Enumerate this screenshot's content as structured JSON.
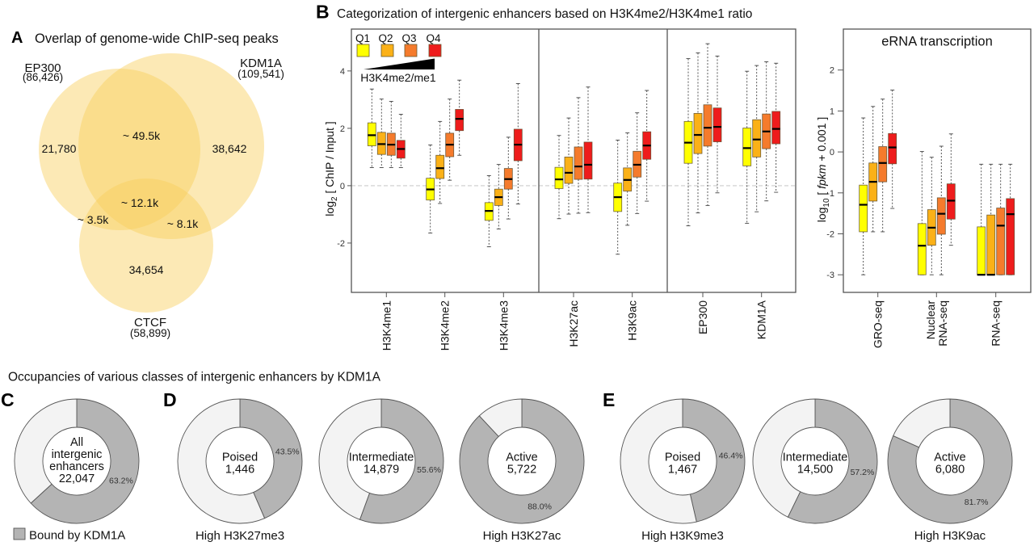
{
  "panel_a": {
    "letter": "A",
    "title": "Overlap of genome-wide ChIP-seq peaks"
  },
  "panel_b": {
    "letter": "B",
    "title": "Categorization of intergenic enhancers based on H3K4me2/H3K4me1 ratio"
  },
  "bottom_section": {
    "title": "Occupancies of various classes of intergenic enhancers by KDM1A",
    "letters": [
      "C",
      "D",
      "E"
    ]
  },
  "chart_data": [
    {
      "type": "venn",
      "title": "Overlap of genome-wide ChIP-seq peaks",
      "fill_color": "#f8cf5a",
      "sets": [
        {
          "name": "EP300",
          "total": 86426,
          "total_label": "(86,426)"
        },
        {
          "name": "KDM1A",
          "total": 109541,
          "total_label": "(109,541)"
        },
        {
          "name": "CTCF",
          "total": 58899,
          "total_label": "(58,899)"
        }
      ],
      "regions": [
        {
          "sets": [
            "EP300"
          ],
          "label": "21,780"
        },
        {
          "sets": [
            "EP300",
            "KDM1A"
          ],
          "label": "~ 49.5k"
        },
        {
          "sets": [
            "KDM1A"
          ],
          "label": "38,642"
        },
        {
          "sets": [
            "EP300",
            "KDM1A",
            "CTCF"
          ],
          "label": "~ 12.1k"
        },
        {
          "sets": [
            "EP300",
            "CTCF"
          ],
          "label": "~ 3.5k"
        },
        {
          "sets": [
            "KDM1A",
            "CTCF"
          ],
          "label": "~ 8.1k"
        },
        {
          "sets": [
            "CTCF"
          ],
          "label": "34,654"
        }
      ]
    },
    {
      "type": "box",
      "title": "Categorization of intergenic enhancers based on H3K4me2/H3K4me1 ratio",
      "ylabel": "log2 [ ChIP / Input ]",
      "ylabel_parts": {
        "base": "log",
        "sub": "2",
        "rest": " [ ChIP / Input ]"
      },
      "ylim": [
        -3.72,
        5.46
      ],
      "yticks": [
        4,
        2,
        0,
        -2
      ],
      "reference_line": 0,
      "grid": false,
      "legend": {
        "placement": "top-left",
        "labels": [
          "Q1",
          "Q2",
          "Q3",
          "Q4"
        ],
        "gradient_label": "H3K4me2/me1"
      },
      "series": [
        {
          "name": "Q1",
          "color": "#ffff00"
        },
        {
          "name": "Q2",
          "color": "#fbb117"
        },
        {
          "name": "Q3",
          "color": "#f57b2c"
        },
        {
          "name": "Q4",
          "color": "#ee1c1c"
        }
      ],
      "sections": [
        [
          "H3K4me1",
          "H3K4me2",
          "H3K4me3"
        ],
        [
          "H3K27ac",
          "H3K9ac"
        ],
        [
          "EP300",
          "KDM1A"
        ]
      ],
      "categories": [
        "H3K4me1",
        "H3K4me2",
        "H3K4me3",
        "H3K27ac",
        "H3K9ac",
        "EP300",
        "KDM1A"
      ],
      "stats_order": [
        "whisker_low",
        "q1",
        "median",
        "q3",
        "whisker_high"
      ],
      "values": [
        [
          [
            0.63,
            1.39,
            1.76,
            2.19,
            3.37
          ],
          [
            0.63,
            1.09,
            1.45,
            1.86,
            3.02
          ],
          [
            0.63,
            1.06,
            1.43,
            1.83,
            2.94
          ],
          [
            0.63,
            0.96,
            1.28,
            1.58,
            2.49
          ]
        ],
        [
          [
            -1.65,
            -0.5,
            -0.13,
            0.26,
            1.42
          ],
          [
            -0.62,
            0.25,
            0.61,
            1.06,
            2.24
          ],
          [
            0.19,
            1.01,
            1.43,
            1.83,
            3.02
          ],
          [
            1.06,
            1.92,
            2.33,
            2.66,
            3.68
          ]
        ],
        [
          [
            -2.13,
            -1.21,
            -0.88,
            -0.59,
            0.35
          ],
          [
            -1.51,
            -0.69,
            -0.4,
            -0.12,
            0.74
          ],
          [
            -1.16,
            -0.12,
            0.23,
            0.6,
            1.69
          ],
          [
            -0.64,
            0.87,
            1.43,
            1.97,
            3.56
          ]
        ],
        [
          [
            -1.15,
            -0.1,
            0.22,
            0.64,
            1.75
          ],
          [
            -0.99,
            0.08,
            0.45,
            1.0,
            2.36
          ],
          [
            -0.96,
            0.22,
            0.67,
            1.35,
            3.07
          ],
          [
            -0.94,
            0.23,
            0.73,
            1.52,
            3.44
          ]
        ],
        [
          [
            -2.39,
            -0.9,
            -0.4,
            0.09,
            1.59
          ],
          [
            -1.38,
            -0.19,
            0.2,
            0.62,
            1.84
          ],
          [
            -0.97,
            0.3,
            0.73,
            1.2,
            2.54
          ],
          [
            -0.54,
            0.92,
            1.4,
            1.88,
            3.32
          ]
        ],
        [
          [
            -1.4,
            0.78,
            1.5,
            2.24,
            4.43
          ],
          [
            -0.95,
            1.12,
            1.77,
            2.52,
            4.63
          ],
          [
            -0.69,
            1.38,
            2.02,
            2.82,
            4.95
          ],
          [
            -0.25,
            1.53,
            2.05,
            2.71,
            4.52
          ]
        ],
        [
          [
            -1.31,
            0.69,
            1.31,
            2.01,
            3.99
          ],
          [
            -0.91,
            1.0,
            1.61,
            2.3,
            4.19
          ],
          [
            -0.53,
            1.29,
            1.89,
            2.5,
            4.32
          ],
          [
            -0.23,
            1.46,
            1.98,
            2.59,
            4.27
          ]
        ]
      ]
    },
    {
      "type": "box",
      "title": "eRNA transcription",
      "ylabel": "log10 [ fpkm + 0.001 ]",
      "ylabel_parts": {
        "base": "log",
        "sub": "10",
        "pre": " [ ",
        "italic": "fpkm",
        "post": " + 0.001 ]"
      },
      "ylim": [
        -3.43,
        3.0
      ],
      "yticks": [
        2,
        1,
        0,
        -1,
        -2,
        -3
      ],
      "grid": false,
      "series": [
        {
          "name": "Q1",
          "color": "#ffff00"
        },
        {
          "name": "Q2",
          "color": "#fbb117"
        },
        {
          "name": "Q3",
          "color": "#f57b2c"
        },
        {
          "name": "Q4",
          "color": "#ee1c1c"
        }
      ],
      "categories": [
        "GRO-seq",
        "Nuclear RNA-seq",
        "RNA-seq"
      ],
      "category_lines": [
        [
          "GRO-seq"
        ],
        [
          "Nuclear",
          "RNA-seq"
        ],
        [
          "RNA-seq"
        ]
      ],
      "stats_order": [
        "whisker_low",
        "q1",
        "median",
        "q3",
        "whisker_high"
      ],
      "values": [
        [
          [
            -3.0,
            -1.95,
            -1.29,
            -0.81,
            0.83
          ],
          [
            -1.95,
            -1.2,
            -0.73,
            -0.27,
            1.11
          ],
          [
            -1.95,
            -0.73,
            -0.27,
            0.13,
            1.29
          ],
          [
            -1.38,
            -0.29,
            0.11,
            0.45,
            1.51
          ]
        ],
        [
          [
            -3.0,
            -3.0,
            -2.29,
            -1.75,
            0.01
          ],
          [
            -3.0,
            -2.28,
            -1.85,
            -1.41,
            -0.13
          ],
          [
            -3.0,
            -2.01,
            -1.51,
            -1.12,
            0.14
          ],
          [
            -2.28,
            -1.64,
            -1.19,
            -0.78,
            0.44
          ]
        ],
        [
          [
            -3.0,
            -3.0,
            -3.0,
            -1.83,
            -0.3
          ],
          [
            -3.0,
            -3.0,
            -3.0,
            -1.54,
            -0.3
          ],
          [
            -3.0,
            -3.0,
            -1.8,
            -1.37,
            -0.3
          ],
          [
            -3.0,
            -3.0,
            -1.52,
            -1.14,
            -0.3
          ]
        ]
      ]
    },
    {
      "type": "pie",
      "subtype": "donut",
      "title": "Occupancies of various classes of intergenic enhancers by KDM1A",
      "legend": {
        "label": "Bound by KDM1A",
        "placement": "bottom-left"
      },
      "colors": {
        "bound": "#b4b4b4",
        "unbound": "#f3f3f3"
      },
      "charts": [
        {
          "panel": "C",
          "center_lines": [
            "All",
            "intergenic",
            "enhancers",
            "22,047"
          ],
          "count": 22047,
          "bound_pct": 63.2,
          "pct_label": "63.2%",
          "caption": ""
        },
        {
          "panel": "D",
          "center_lines": [
            "Poised",
            "1,446"
          ],
          "count": 1446,
          "bound_pct": 43.5,
          "pct_label": "43.5%",
          "caption": "High H3K27me3"
        },
        {
          "panel": "D",
          "center_lines": [
            "Intermediate",
            "14,879"
          ],
          "count": 14879,
          "bound_pct": 55.6,
          "pct_label": "55.6%",
          "caption": ""
        },
        {
          "panel": "D",
          "center_lines": [
            "Active",
            "5,722"
          ],
          "count": 5722,
          "bound_pct": 88.0,
          "pct_label": "88.0%",
          "caption": "High H3K27ac"
        },
        {
          "panel": "E",
          "center_lines": [
            "Poised",
            "1,467"
          ],
          "count": 1467,
          "bound_pct": 46.4,
          "pct_label": "46.4%",
          "caption": "High H3K9me3"
        },
        {
          "panel": "E",
          "center_lines": [
            "Intermediate",
            "14,500"
          ],
          "count": 14500,
          "bound_pct": 57.2,
          "pct_label": "57.2%",
          "caption": ""
        },
        {
          "panel": "E",
          "center_lines": [
            "Active",
            "6,080"
          ],
          "count": 6080,
          "bound_pct": 81.7,
          "pct_label": "81.7%",
          "caption": "High H3K9ac"
        }
      ]
    }
  ]
}
